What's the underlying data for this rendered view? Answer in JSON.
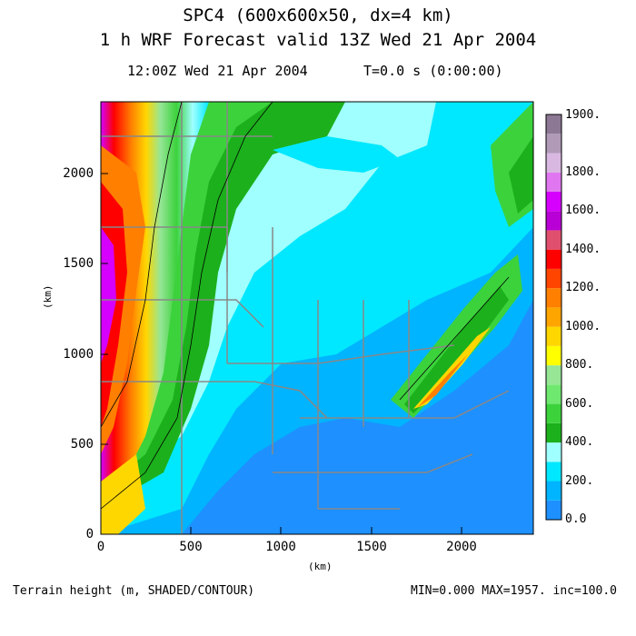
{
  "header": {
    "title_line1": "SPC4 (600x600x50, dx=4 km)",
    "title_line2": "1 h WRF Forecast valid 13Z Wed 21 Apr 2004",
    "valid_time": "12:00Z Wed 21 Apr 2004",
    "time_step": "T=0.0 s (0:00:00)"
  },
  "axes": {
    "x_label": "(km)",
    "y_label": "(km)",
    "x_ticks": [
      "0",
      "500",
      "1000",
      "1500",
      "2000"
    ],
    "y_ticks": [
      "0",
      "500",
      "1000",
      "1500",
      "2000"
    ]
  },
  "colorbar": {
    "labels": [
      "0.0",
      "200.",
      "400.",
      "600.",
      "800.",
      "1000.",
      "1200.",
      "1400.",
      "1600.",
      "1800.",
      "1900."
    ],
    "colors": [
      "#1e90ff",
      "#00b4ff",
      "#00e8ff",
      "#a0ffff",
      "#1cb01c",
      "#3cd23c",
      "#6fe86f",
      "#96e696",
      "#ffff00",
      "#ffd700",
      "#ffa500",
      "#ff7f00",
      "#ff4500",
      "#ff0000",
      "#e0506e",
      "#b800d6",
      "#d600ff",
      "#e077f0",
      "#d8b8e0",
      "#b09ab8",
      "#8c7894"
    ]
  },
  "footer": {
    "left": "Terrain height (m, SHADED/CONTOUR)",
    "right": "MIN=0.000 MAX=1957. inc=100.0"
  },
  "chart_data": {
    "type": "heatmap",
    "title": "SPC4 (600x600x50, dx=4 km)",
    "subtitle": "1 h WRF Forecast valid 13Z Wed 21 Apr 2004",
    "xlabel": "(km)",
    "ylabel": "(km)",
    "xlim": [
      0,
      2400
    ],
    "ylim": [
      0,
      2400
    ],
    "field": "Terrain height (m)",
    "min": 0.0,
    "max": 1957,
    "increment": 100.0,
    "colorbar_range": [
      0,
      1900
    ]
  }
}
